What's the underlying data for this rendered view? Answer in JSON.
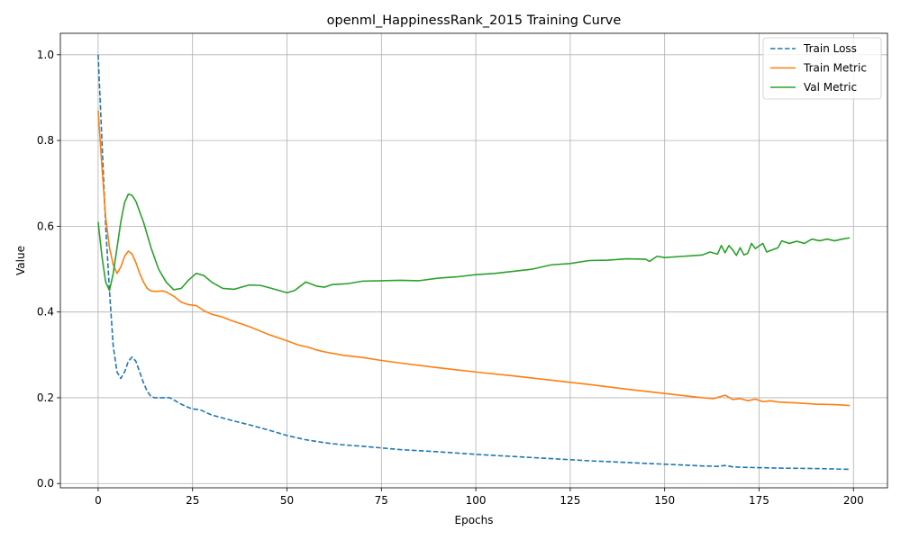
{
  "chart_data": {
    "type": "line",
    "title": "openml_HappinessRank_2015 Training Curve",
    "xlabel": "Epochs",
    "ylabel": "Value",
    "xlim": [
      -10,
      209
    ],
    "ylim": [
      -0.01,
      1.05
    ],
    "xticks": [
      0,
      25,
      50,
      75,
      100,
      125,
      150,
      175,
      200
    ],
    "yticks": [
      0.0,
      0.2,
      0.4,
      0.6,
      0.8,
      1.0
    ],
    "xtick_labels": [
      "0",
      "25",
      "50",
      "75",
      "100",
      "125",
      "150",
      "175",
      "200"
    ],
    "ytick_labels": [
      "0.0",
      "0.2",
      "0.4",
      "0.6",
      "0.8",
      "1.0"
    ],
    "grid": true,
    "legend_position": "top-right",
    "series": [
      {
        "name": "Train Loss",
        "color": "#1f77b4",
        "style": "dashed",
        "points": [
          [
            0,
            1.0
          ],
          [
            1,
            0.8
          ],
          [
            2,
            0.6
          ],
          [
            3,
            0.45
          ],
          [
            4,
            0.32
          ],
          [
            5,
            0.26
          ],
          [
            6,
            0.245
          ],
          [
            7,
            0.26
          ],
          [
            8,
            0.285
          ],
          [
            9,
            0.295
          ],
          [
            10,
            0.285
          ],
          [
            11,
            0.26
          ],
          [
            12,
            0.235
          ],
          [
            13,
            0.215
          ],
          [
            14,
            0.203
          ],
          [
            15,
            0.2
          ],
          [
            18,
            0.2
          ],
          [
            19,
            0.2
          ],
          [
            20,
            0.195
          ],
          [
            22,
            0.185
          ],
          [
            24,
            0.177
          ],
          [
            25,
            0.174
          ],
          [
            27,
            0.172
          ],
          [
            30,
            0.16
          ],
          [
            35,
            0.148
          ],
          [
            40,
            0.137
          ],
          [
            45,
            0.125
          ],
          [
            50,
            0.112
          ],
          [
            55,
            0.102
          ],
          [
            60,
            0.095
          ],
          [
            65,
            0.09
          ],
          [
            70,
            0.087
          ],
          [
            75,
            0.083
          ],
          [
            80,
            0.079
          ],
          [
            90,
            0.074
          ],
          [
            100,
            0.068
          ],
          [
            110,
            0.063
          ],
          [
            120,
            0.058
          ],
          [
            130,
            0.053
          ],
          [
            140,
            0.049
          ],
          [
            150,
            0.045
          ],
          [
            160,
            0.041
          ],
          [
            164,
            0.04
          ],
          [
            166,
            0.042
          ],
          [
            168,
            0.039
          ],
          [
            170,
            0.038
          ],
          [
            180,
            0.036
          ],
          [
            190,
            0.035
          ],
          [
            199,
            0.033
          ]
        ]
      },
      {
        "name": "Train Metric",
        "color": "#ff7f0e",
        "style": "solid",
        "points": [
          [
            0,
            0.87
          ],
          [
            1,
            0.74
          ],
          [
            2,
            0.62
          ],
          [
            3,
            0.55
          ],
          [
            4,
            0.51
          ],
          [
            5,
            0.49
          ],
          [
            6,
            0.505
          ],
          [
            7,
            0.53
          ],
          [
            8,
            0.542
          ],
          [
            9,
            0.535
          ],
          [
            10,
            0.515
          ],
          [
            11,
            0.49
          ],
          [
            12,
            0.47
          ],
          [
            13,
            0.455
          ],
          [
            14,
            0.449
          ],
          [
            15,
            0.448
          ],
          [
            17,
            0.449
          ],
          [
            18,
            0.447
          ],
          [
            20,
            0.437
          ],
          [
            22,
            0.423
          ],
          [
            24,
            0.417
          ],
          [
            26,
            0.415
          ],
          [
            28,
            0.403
          ],
          [
            30,
            0.395
          ],
          [
            33,
            0.388
          ],
          [
            35,
            0.381
          ],
          [
            40,
            0.366
          ],
          [
            45,
            0.348
          ],
          [
            50,
            0.333
          ],
          [
            53,
            0.323
          ],
          [
            56,
            0.317
          ],
          [
            58,
            0.311
          ],
          [
            60,
            0.307
          ],
          [
            65,
            0.299
          ],
          [
            70,
            0.294
          ],
          [
            75,
            0.287
          ],
          [
            80,
            0.281
          ],
          [
            90,
            0.27
          ],
          [
            100,
            0.26
          ],
          [
            110,
            0.251
          ],
          [
            120,
            0.241
          ],
          [
            130,
            0.231
          ],
          [
            140,
            0.22
          ],
          [
            150,
            0.21
          ],
          [
            160,
            0.2
          ],
          [
            163,
            0.198
          ],
          [
            166,
            0.206
          ],
          [
            168,
            0.196
          ],
          [
            170,
            0.198
          ],
          [
            172,
            0.193
          ],
          [
            174,
            0.197
          ],
          [
            176,
            0.191
          ],
          [
            178,
            0.193
          ],
          [
            180,
            0.19
          ],
          [
            185,
            0.188
          ],
          [
            190,
            0.185
          ],
          [
            195,
            0.184
          ],
          [
            199,
            0.182
          ]
        ]
      },
      {
        "name": "Val Metric",
        "color": "#2ca02c",
        "style": "solid",
        "points": [
          [
            0,
            0.61
          ],
          [
            1,
            0.53
          ],
          [
            2,
            0.47
          ],
          [
            3,
            0.45
          ],
          [
            4,
            0.49
          ],
          [
            5,
            0.55
          ],
          [
            6,
            0.61
          ],
          [
            7,
            0.655
          ],
          [
            8,
            0.675
          ],
          [
            9,
            0.672
          ],
          [
            10,
            0.658
          ],
          [
            12,
            0.61
          ],
          [
            14,
            0.55
          ],
          [
            16,
            0.5
          ],
          [
            18,
            0.47
          ],
          [
            20,
            0.452
          ],
          [
            22,
            0.455
          ],
          [
            24,
            0.475
          ],
          [
            26,
            0.49
          ],
          [
            28,
            0.485
          ],
          [
            30,
            0.47
          ],
          [
            33,
            0.455
          ],
          [
            36,
            0.453
          ],
          [
            38,
            0.458
          ],
          [
            40,
            0.463
          ],
          [
            43,
            0.462
          ],
          [
            46,
            0.455
          ],
          [
            50,
            0.445
          ],
          [
            52,
            0.45
          ],
          [
            55,
            0.47
          ],
          [
            58,
            0.46
          ],
          [
            60,
            0.458
          ],
          [
            62,
            0.464
          ],
          [
            66,
            0.466
          ],
          [
            70,
            0.472
          ],
          [
            75,
            0.473
          ],
          [
            80,
            0.474
          ],
          [
            85,
            0.473
          ],
          [
            90,
            0.479
          ],
          [
            95,
            0.482
          ],
          [
            100,
            0.487
          ],
          [
            105,
            0.49
          ],
          [
            110,
            0.495
          ],
          [
            115,
            0.5
          ],
          [
            120,
            0.51
          ],
          [
            125,
            0.513
          ],
          [
            130,
            0.52
          ],
          [
            135,
            0.521
          ],
          [
            140,
            0.524
          ],
          [
            145,
            0.523
          ],
          [
            146,
            0.518
          ],
          [
            148,
            0.53
          ],
          [
            150,
            0.527
          ],
          [
            155,
            0.53
          ],
          [
            160,
            0.533
          ],
          [
            162,
            0.54
          ],
          [
            164,
            0.535
          ],
          [
            165,
            0.555
          ],
          [
            166,
            0.538
          ],
          [
            167,
            0.555
          ],
          [
            168,
            0.545
          ],
          [
            169,
            0.532
          ],
          [
            170,
            0.55
          ],
          [
            171,
            0.533
          ],
          [
            172,
            0.537
          ],
          [
            173,
            0.56
          ],
          [
            174,
            0.548
          ],
          [
            176,
            0.56
          ],
          [
            177,
            0.54
          ],
          [
            180,
            0.55
          ],
          [
            181,
            0.566
          ],
          [
            183,
            0.56
          ],
          [
            185,
            0.565
          ],
          [
            187,
            0.56
          ],
          [
            189,
            0.57
          ],
          [
            191,
            0.566
          ],
          [
            193,
            0.57
          ],
          [
            195,
            0.566
          ],
          [
            197,
            0.57
          ],
          [
            199,
            0.573
          ]
        ]
      }
    ]
  }
}
